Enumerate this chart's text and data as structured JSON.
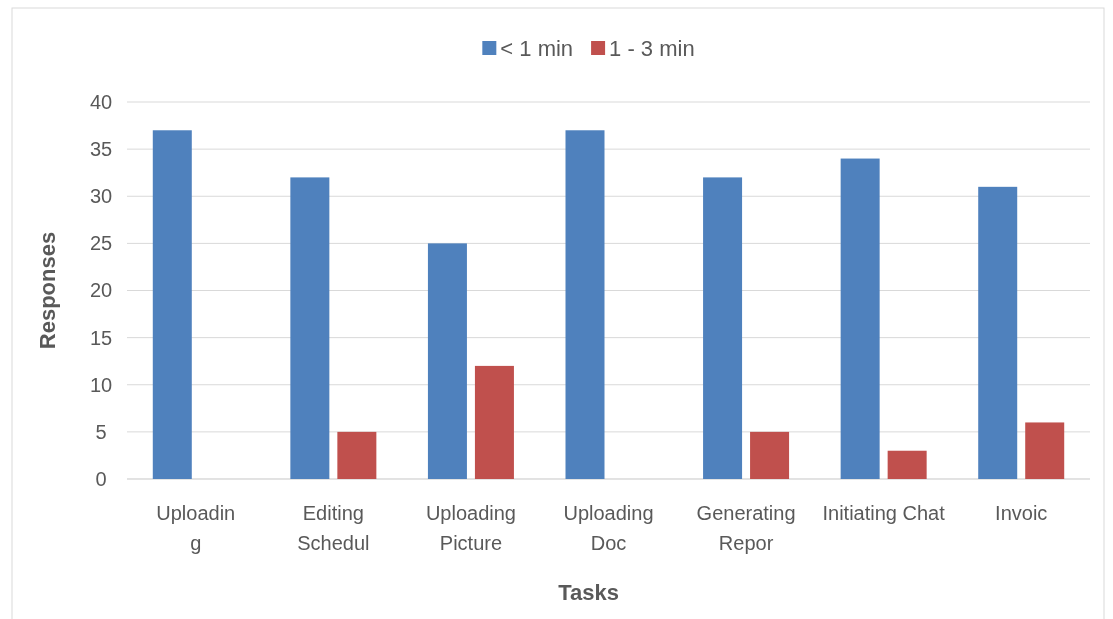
{
  "chart_data": {
    "type": "bar",
    "xlabel": "Tasks",
    "ylabel": "Responses",
    "categories": [
      "Uploadin\ng",
      "Editing\nSchedul",
      "Uploading\nPicture",
      "Uploading\nDoc",
      "Generating\nRepor",
      "Initiating Chat",
      "Invoic"
    ],
    "series": [
      {
        "name": "< 1 min",
        "color": "#4f81bd",
        "values": [
          37,
          32,
          25,
          37,
          32,
          34,
          31
        ]
      },
      {
        "name": "1 - 3 min",
        "color": "#c0504d",
        "values": [
          0,
          5,
          12,
          0,
          5,
          3,
          6
        ]
      }
    ],
    "ylim": [
      0,
      40
    ],
    "yticks": [
      0,
      5,
      10,
      15,
      20,
      25,
      30,
      35,
      40
    ],
    "grid": "y",
    "legend": "top"
  }
}
